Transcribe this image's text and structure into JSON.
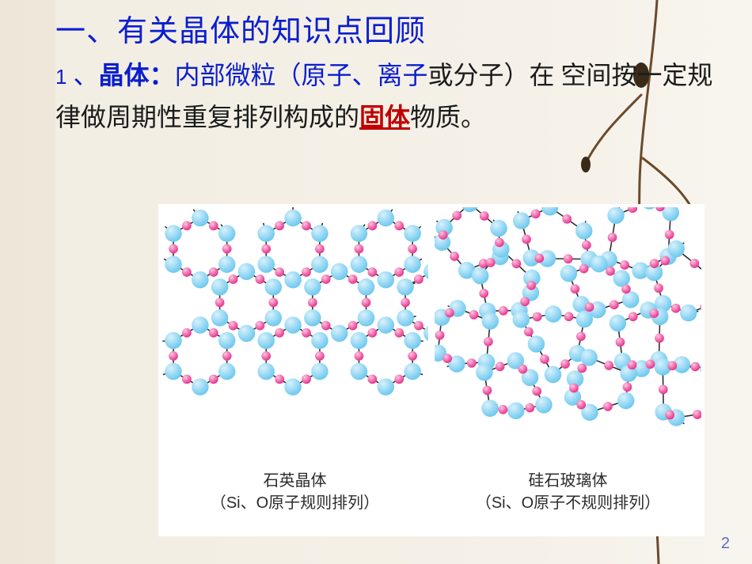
{
  "title": "一、有关晶体的知识点回顾",
  "paragraph": {
    "p1_num": "1",
    "p1_sep": " 、",
    "p1_bold": "晶体：",
    "p1_pre": "内部微粒（原子、离子",
    "p1_mid": "或分子）在 空间按一定规律做周期性重复排列构成的",
    "p1_key": "固体",
    "p1_post": "物质。"
  },
  "diagrams": {
    "left": {
      "caption_line1": "石英晶体",
      "caption_line2_a": "（",
      "caption_line2_b": "Si、O",
      "caption_line2_c": "原子规则排列）",
      "colors": {
        "big": "#9cdcf7",
        "big_hi": "#d8f1fc",
        "small": "#f25fa9",
        "small_hi": "#fbc7e2",
        "bond": "#2b2b2b",
        "bg": "#ffffff"
      },
      "radii": {
        "big": 11,
        "small": 6
      }
    },
    "right": {
      "caption_line1": "硅石玻璃体",
      "caption_line2_a": "（",
      "caption_line2_b": "Si、O",
      "caption_line2_c": "原子不规则排列）",
      "colors": {
        "big": "#9cdcf7",
        "big_hi": "#d8f1fc",
        "small": "#f25fa9",
        "small_hi": "#fbc7e2",
        "bond": "#2b2b2b",
        "bg": "#ffffff"
      },
      "radii": {
        "big": 11,
        "small": 6
      }
    }
  },
  "page_number": "2",
  "branch_colors": {
    "stem": "#6b4a2b",
    "bud_dark": "#3a2a18",
    "leaf": "#8a9a5b"
  }
}
